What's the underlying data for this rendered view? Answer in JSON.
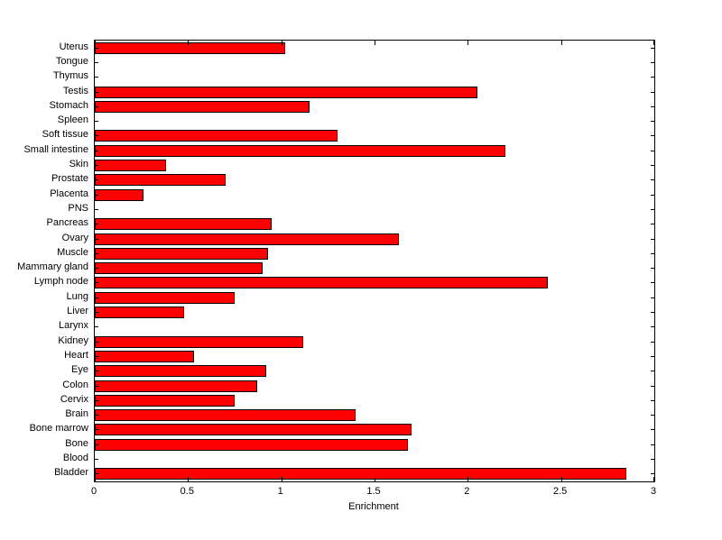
{
  "chart_data": {
    "type": "bar",
    "orientation": "horizontal",
    "title": "",
    "xlabel": "Enrichment",
    "ylabel": "",
    "xlim": [
      0,
      3
    ],
    "xticks": [
      0,
      0.5,
      1,
      1.5,
      2,
      2.5,
      3
    ],
    "xtick_labels": [
      "0",
      "0.5",
      "1",
      "1.5",
      "2",
      "2.5",
      "3"
    ],
    "grid": false,
    "legend": null,
    "bar_color": "#ff0000",
    "bar_edge_color": "#000000",
    "categories": [
      "Uterus",
      "Tongue",
      "Thymus",
      "Testis",
      "Stomach",
      "Spleen",
      "Soft tissue",
      "Small intestine",
      "Skin",
      "Prostate",
      "Placenta",
      "PNS",
      "Pancreas",
      "Ovary",
      "Muscle",
      "Mammary gland",
      "Lymph node",
      "Lung",
      "Liver",
      "Larynx",
      "Kidney",
      "Heart",
      "Eye",
      "Colon",
      "Cervix",
      "Brain",
      "Bone marrow",
      "Bone",
      "Blood",
      "Bladder"
    ],
    "values": [
      1.02,
      0,
      0,
      2.05,
      1.15,
      0,
      1.3,
      2.2,
      0.38,
      0.7,
      0.26,
      0,
      0.95,
      1.63,
      0.93,
      0.9,
      2.43,
      0.75,
      0.48,
      0,
      1.12,
      0.53,
      0.92,
      0.87,
      0.75,
      1.4,
      1.7,
      1.68,
      0,
      2.85
    ]
  }
}
